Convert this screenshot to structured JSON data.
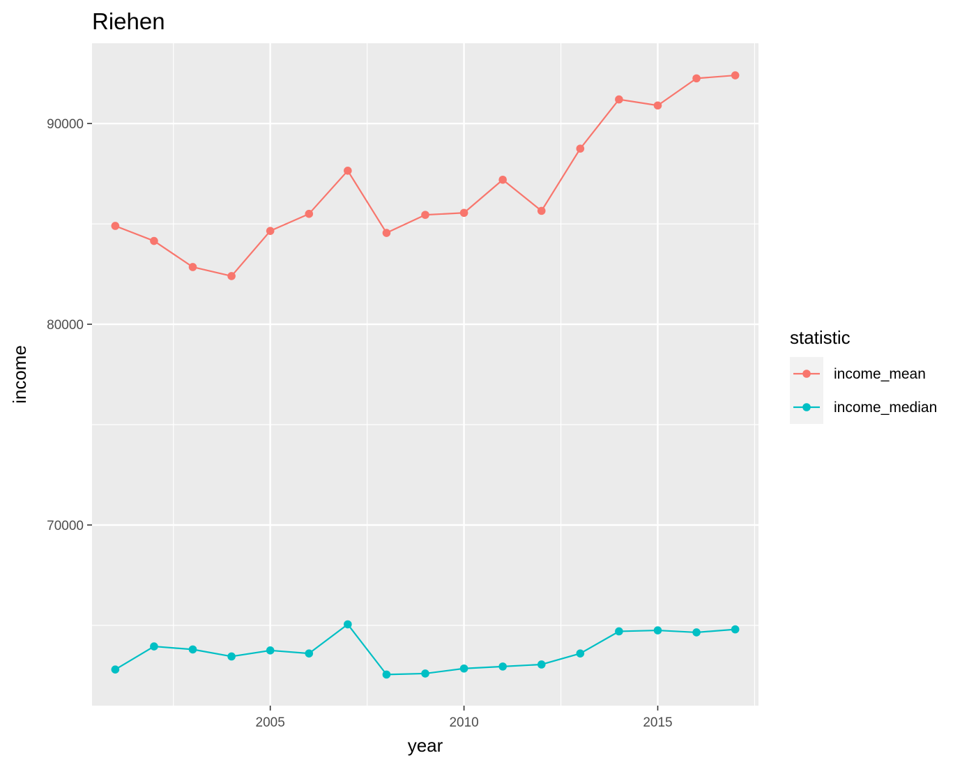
{
  "chart_data": {
    "type": "line",
    "title": "Riehen",
    "xlabel": "year",
    "ylabel": "income",
    "xlim": [
      2000.4,
      2017.6
    ],
    "ylim": [
      61000,
      94000
    ],
    "x_ticks": [
      2005,
      2010,
      2015
    ],
    "y_ticks": [
      70000,
      80000,
      90000
    ],
    "grid": true,
    "legend": {
      "title": "statistic",
      "position": "right"
    },
    "x": [
      2001,
      2002,
      2003,
      2004,
      2005,
      2006,
      2007,
      2008,
      2009,
      2010,
      2011,
      2012,
      2013,
      2014,
      2015,
      2016,
      2017
    ],
    "series": [
      {
        "name": "income_mean",
        "color": "#F8766D",
        "values": [
          84900,
          84150,
          82850,
          82400,
          84650,
          85500,
          87650,
          84550,
          85450,
          85550,
          87200,
          85650,
          88750,
          91200,
          90900,
          92250,
          92400
        ]
      },
      {
        "name": "income_median",
        "color": "#00BFC4",
        "values": [
          62800,
          63950,
          63800,
          63450,
          63750,
          63600,
          65050,
          62550,
          62600,
          62850,
          62950,
          63050,
          63600,
          64700,
          64750,
          64650,
          64800
        ]
      }
    ]
  }
}
